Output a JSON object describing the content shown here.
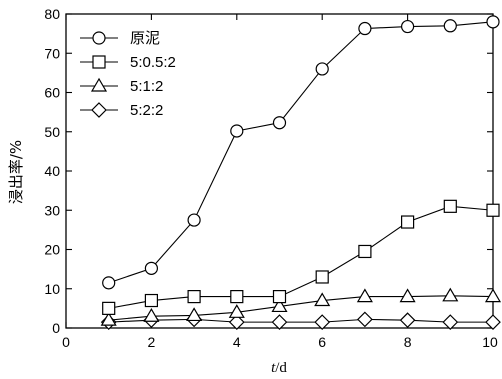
{
  "chart_data": {
    "type": "line",
    "xlabel_italic": "t",
    "xlabel_unit": "/d",
    "ylabel": "浸出率/%",
    "xlim": [
      0,
      10
    ],
    "ylim": [
      0,
      80
    ],
    "xticks": [
      0,
      2,
      4,
      6,
      8,
      10
    ],
    "yticks": [
      0,
      10,
      20,
      30,
      40,
      50,
      60,
      70,
      80
    ],
    "grid": false,
    "legend_position": "top-left",
    "series": [
      {
        "name": "原泥",
        "marker": "circle",
        "x": [
          1,
          2,
          3,
          4,
          5,
          6,
          7,
          8,
          9,
          10
        ],
        "y": [
          11.5,
          15.2,
          27.5,
          50.2,
          52.3,
          66.0,
          76.3,
          76.8,
          77.0,
          78.0
        ]
      },
      {
        "name": "5:0.5:2",
        "marker": "square",
        "x": [
          1,
          2,
          3,
          4,
          5,
          6,
          7,
          8,
          9,
          10
        ],
        "y": [
          5.0,
          7.0,
          8.0,
          8.0,
          8.0,
          13.0,
          19.5,
          27.0,
          31.0,
          30.0
        ]
      },
      {
        "name": "5:1:2",
        "marker": "triangle",
        "x": [
          1,
          2,
          3,
          4,
          5,
          6,
          7,
          8,
          9,
          10
        ],
        "y": [
          2.0,
          3.0,
          3.2,
          4.0,
          5.5,
          7.0,
          8.0,
          8.0,
          8.2,
          8.0
        ]
      },
      {
        "name": "5:2:2",
        "marker": "diamond",
        "x": [
          1,
          2,
          3,
          4,
          5,
          6,
          7,
          8,
          9,
          10
        ],
        "y": [
          1.5,
          2.0,
          2.2,
          1.5,
          1.5,
          1.5,
          2.2,
          2.0,
          1.5,
          1.5
        ]
      }
    ]
  }
}
